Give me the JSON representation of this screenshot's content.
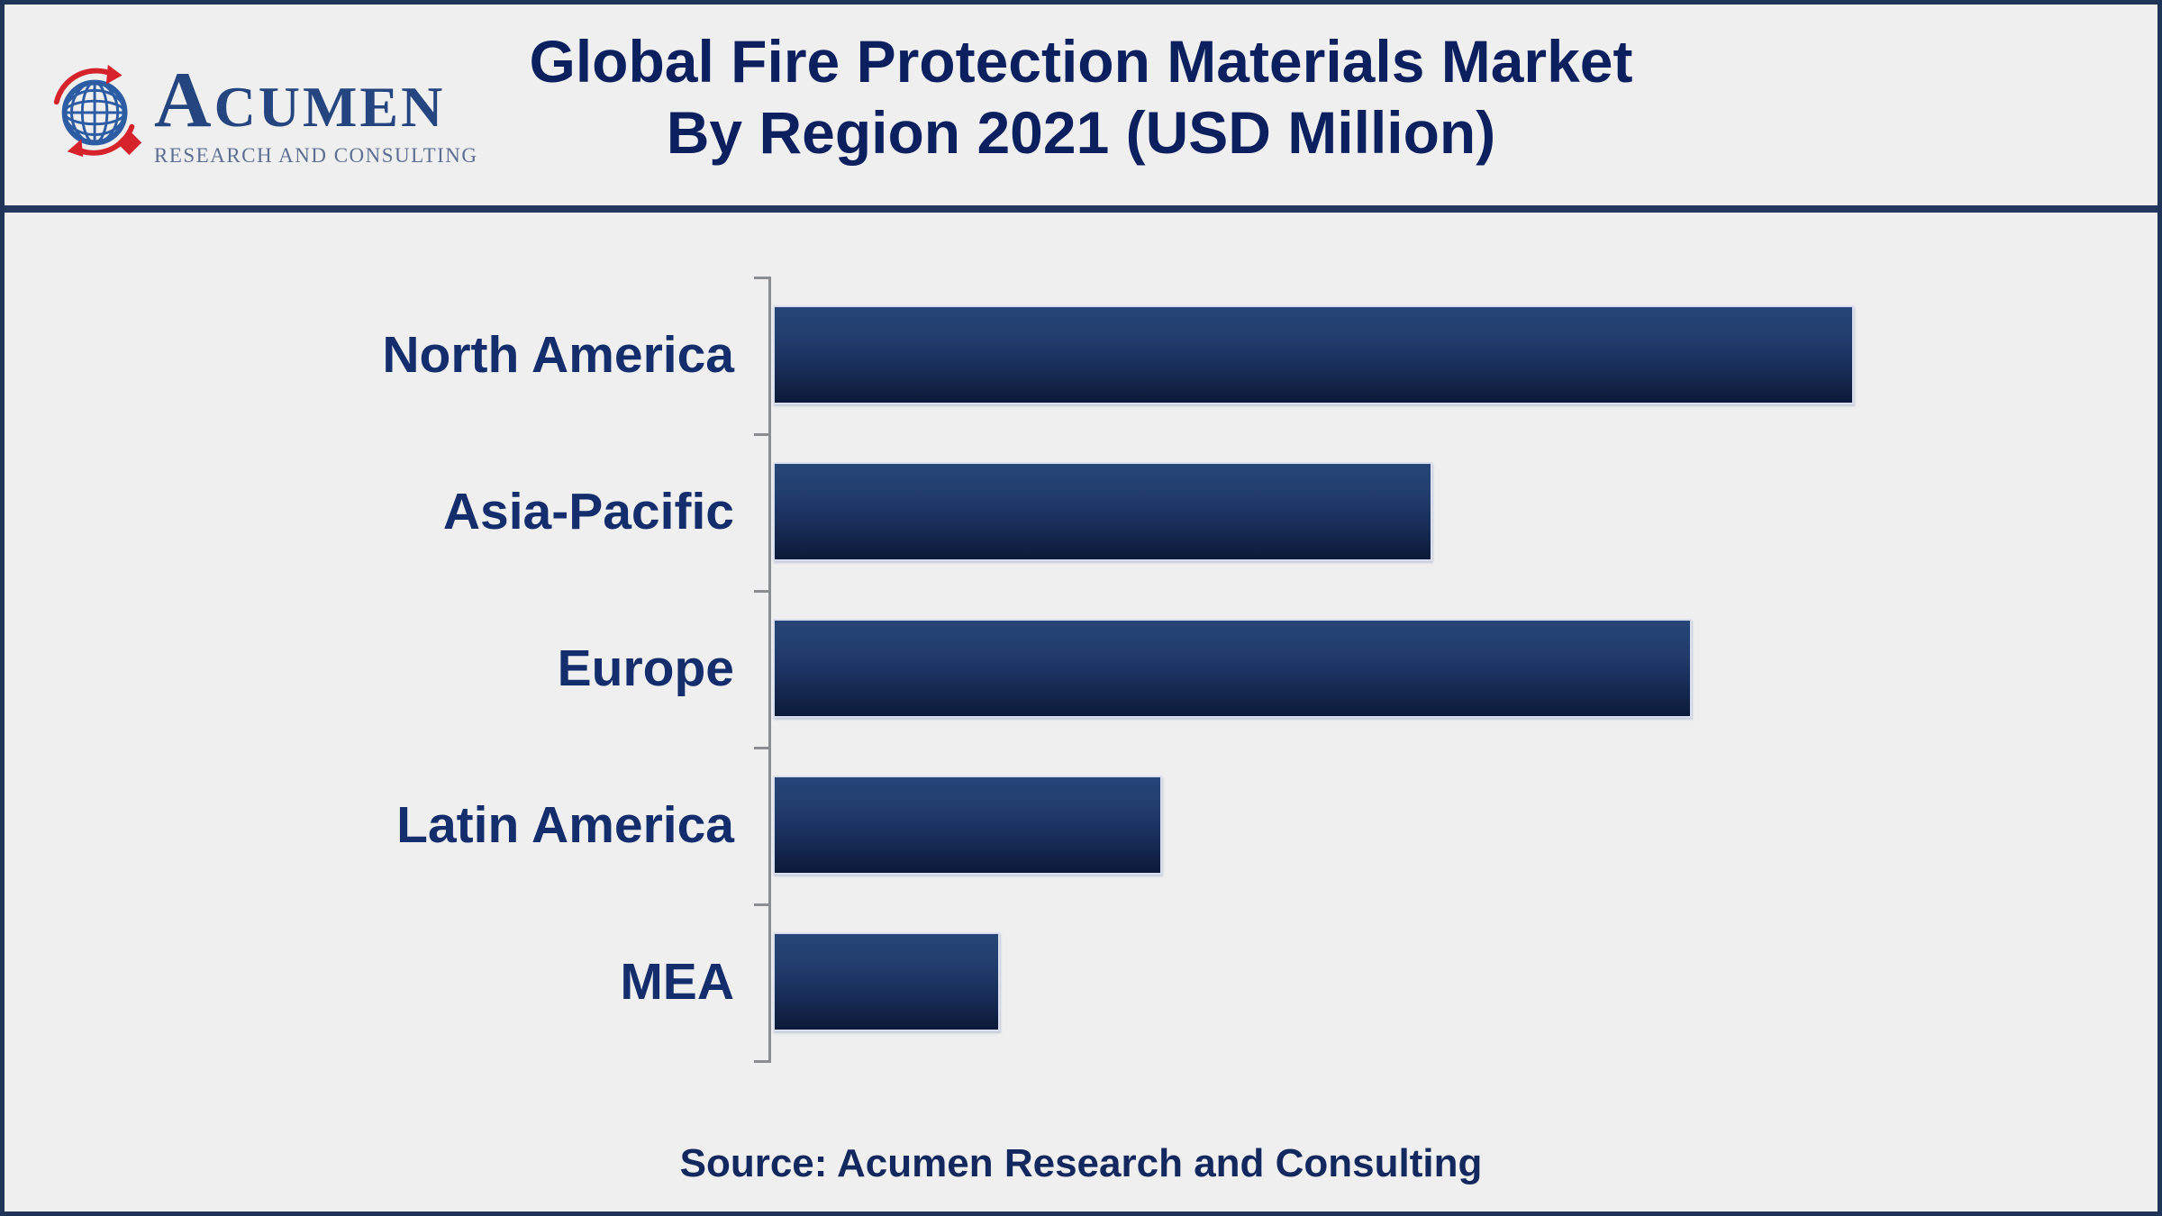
{
  "page": {
    "background": "#efeff0",
    "frame_border_color": "#20345a",
    "divider_color": "#24395f"
  },
  "header": {
    "logo": {
      "wordmark_first_letter": "A",
      "wordmark_rest": "CUMEN",
      "subtitle": "RESEARCH AND CONSULTING",
      "globe_color": "#2c5ca3",
      "accent_red": "#d6232b",
      "wordmark_color": "#24457f",
      "subtitle_color": "#5c6f93"
    },
    "title_line1": "Global Fire Protection Materials Market",
    "title_line2": "By Region 2021 (USD Million)",
    "title_color": "#0c2060"
  },
  "chart_data": {
    "type": "bar",
    "orientation": "horizontal",
    "title": "Global Fire Protection Materials Market By Region 2021 (USD Million)",
    "unit": "USD Million",
    "categories": [
      "North America",
      "Asia-Pacific",
      "Europe",
      "Latin America",
      "MEA"
    ],
    "values_relative_pct_of_max": [
      100,
      61,
      85,
      36,
      21
    ],
    "value_axis": "unlabeled (no numeric ticks or data labels shown)",
    "xlabel": "",
    "ylabel": "",
    "grid": false,
    "legend": false,
    "bar_gradient_top": "#274578",
    "bar_gradient_bottom": "#0c1a38",
    "bar_outline_color": "#d9dfee",
    "category_label_color": "#142e6d",
    "axis_color": "#8a8d92"
  },
  "footer": {
    "source_text": "Source: Acumen Research and Consulting"
  }
}
